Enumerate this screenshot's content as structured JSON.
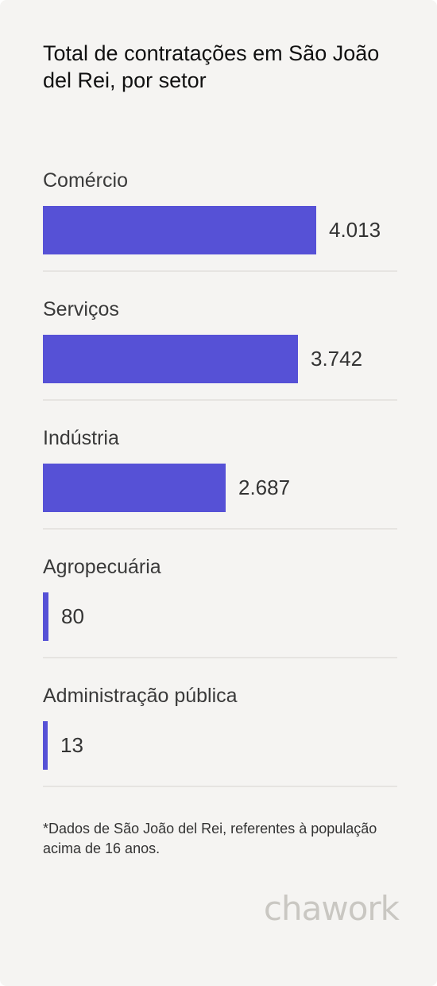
{
  "header": {
    "title": "Total de contratações em São João del Rei, por setor"
  },
  "chart_data": {
    "type": "bar",
    "orientation": "horizontal",
    "title": "Total de contratações em São João del Rei, por setor",
    "categories": [
      "Comércio",
      "Serviços",
      "Indústria",
      "Agropecuária",
      "Administração pública"
    ],
    "values": [
      4013,
      3742,
      2687,
      80,
      13
    ],
    "value_labels": [
      "4.013",
      "3.742",
      "2.687",
      "80",
      "13"
    ],
    "bar_color": "#5651d6",
    "grid": false,
    "legend": "none"
  },
  "footnote": "*Dados de São João del Rei, referentes à população acima de 16 anos.",
  "brand": {
    "logo_text": "chawork"
  },
  "colors": {
    "background": "#f5f4f2",
    "bar": "#5651d6",
    "divider": "#e6e4e1"
  }
}
